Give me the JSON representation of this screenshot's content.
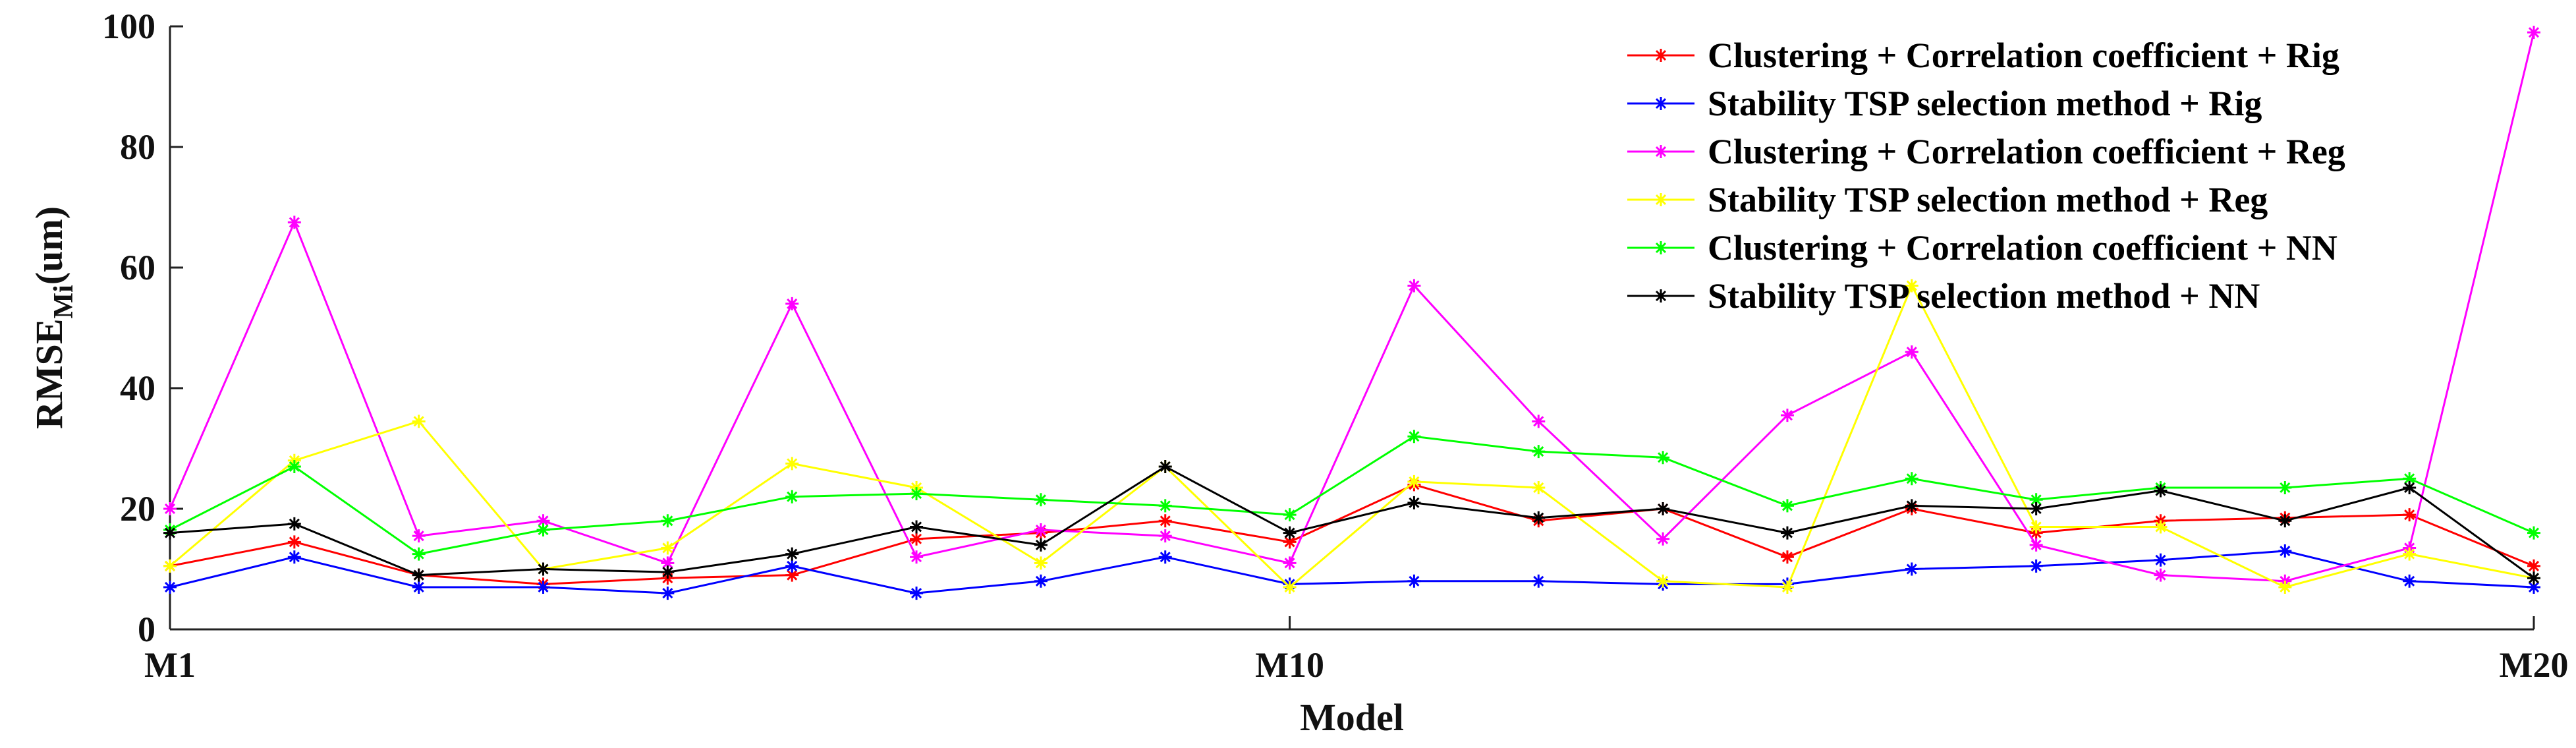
{
  "chart_data": {
    "type": "line",
    "title": "",
    "xlabel": "Model",
    "ylabel_main": "RMSE",
    "ylabel_sub": "Mi",
    "ylabel_unit": "(um)",
    "ylim": [
      0,
      100
    ],
    "xlim": [
      1,
      20
    ],
    "yticks": [
      0,
      20,
      40,
      60,
      80,
      100
    ],
    "xticks": [
      {
        "value": 1,
        "label": "M1"
      },
      {
        "value": 10,
        "label": "M10"
      },
      {
        "value": 20,
        "label": "M20"
      }
    ],
    "x": [
      1,
      2,
      3,
      4,
      5,
      6,
      7,
      8,
      9,
      10,
      11,
      12,
      13,
      14,
      15,
      16,
      17,
      18,
      19,
      20
    ],
    "grid": false,
    "legend_position": "top-right",
    "series": [
      {
        "name": "Clustering + Correlation coefficient + Rig",
        "color": "#ff0000",
        "values": [
          10.5,
          14.5,
          9,
          7.5,
          8.5,
          9,
          15,
          16,
          18,
          14.5,
          24,
          18,
          20,
          12,
          20,
          16,
          18,
          18.5,
          19,
          10.5
        ]
      },
      {
        "name": "Stability TSP selection method + Rig",
        "color": "#0000ff",
        "values": [
          7,
          12,
          7,
          7,
          6,
          10.5,
          6,
          8,
          12,
          7.5,
          8,
          8,
          7.5,
          7.5,
          10,
          10.5,
          11.5,
          13,
          8,
          7
        ]
      },
      {
        "name": "Clustering + Correlation coefficient + Reg",
        "color": "#ff00ff",
        "values": [
          20,
          67.5,
          15.5,
          18,
          11,
          54,
          12,
          16.5,
          15.5,
          11,
          57,
          34.5,
          15,
          35.5,
          46,
          14,
          9,
          8,
          13.5,
          99
        ]
      },
      {
        "name": "Stability TSP selection method + Reg",
        "color": "#ffff00",
        "values": [
          10.5,
          28,
          34.5,
          10,
          13.5,
          27.5,
          23.5,
          11,
          27,
          7,
          24.5,
          23.5,
          8,
          7,
          57,
          17,
          17,
          7,
          12.5,
          8.5
        ]
      },
      {
        "name": "Clustering + Correlation coefficient + NN",
        "color": "#00ff00",
        "values": [
          16.5,
          27,
          12.5,
          16.5,
          18,
          22,
          22.5,
          21.5,
          20.5,
          19,
          32,
          29.5,
          28.5,
          20.5,
          25,
          21.5,
          23.5,
          23.5,
          25,
          16
        ]
      },
      {
        "name": "Stability TSP selection method + NN",
        "color": "#000000",
        "values": [
          16,
          17.5,
          9,
          10,
          9.5,
          12.5,
          17,
          14,
          27,
          16,
          21,
          18.5,
          20,
          16,
          20.5,
          20,
          23,
          18,
          23.5,
          8.5
        ]
      }
    ]
  }
}
